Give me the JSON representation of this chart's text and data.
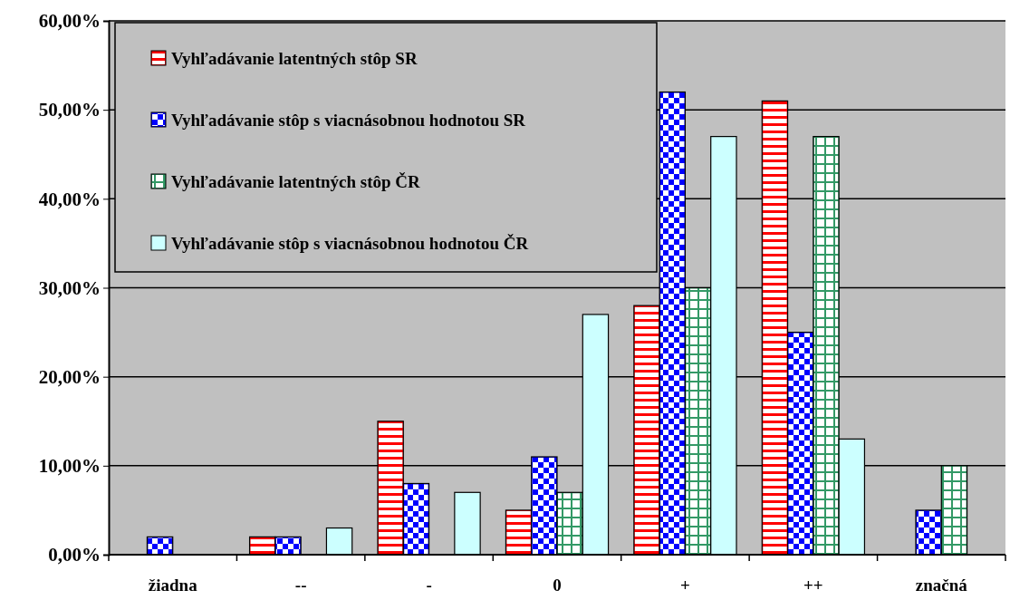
{
  "chart_data": {
    "type": "bar",
    "categories": [
      "žiadna",
      "--",
      "-",
      "0",
      "+",
      "++",
      "značná"
    ],
    "series": [
      {
        "name": "Vyhľadávanie latentných stôp SR",
        "color": "#ff0000",
        "values": [
          0,
          2,
          15,
          5,
          28,
          51,
          0
        ]
      },
      {
        "name": "Vyhľadávanie stôp s viacnásobnou hodnotou SR",
        "color": "#0000ff",
        "values": [
          2,
          2,
          8,
          11,
          52,
          25,
          5
        ]
      },
      {
        "name": "Vyhľadávanie latentných stôp ČR",
        "color": "#339966",
        "values": [
          0,
          0,
          0,
          7,
          30,
          47,
          10
        ]
      },
      {
        "name": "Vyhľadávanie stôp s viacnásobnou hodnotou ČR",
        "color": "#ccffff",
        "values": [
          0,
          3,
          7,
          27,
          47,
          13,
          0
        ]
      }
    ],
    "ylim": [
      0,
      60
    ],
    "yticks": [
      {
        "value": 0,
        "label": "0,00%"
      },
      {
        "value": 10,
        "label": "10,00%"
      },
      {
        "value": 20,
        "label": "20,00%"
      },
      {
        "value": 30,
        "label": "30,00%"
      },
      {
        "value": 40,
        "label": "40,00%"
      },
      {
        "value": 50,
        "label": "50,00%"
      },
      {
        "value": 60,
        "label": "60,00%"
      }
    ],
    "grid": "y",
    "legend": "top left"
  }
}
